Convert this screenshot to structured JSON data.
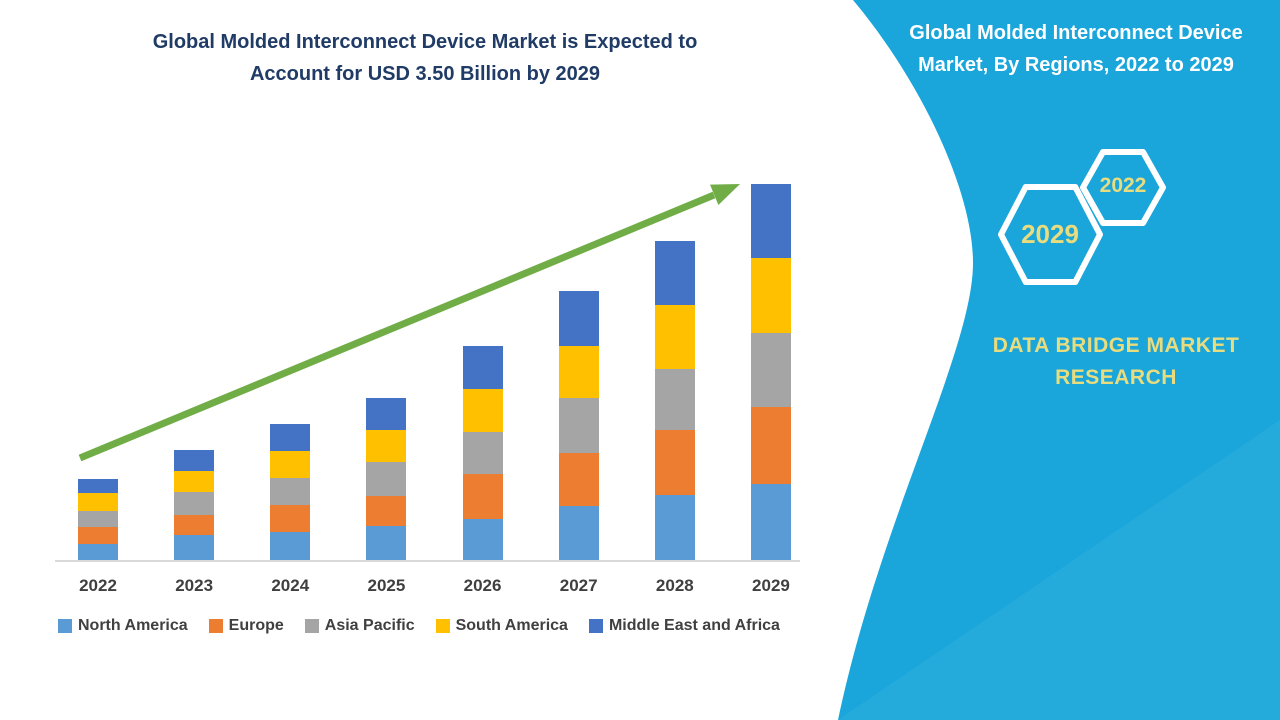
{
  "left_panel": {
    "title_line1": "Global Molded Interconnect Device Market is Expected to",
    "title_line2": "Account for USD 3.50 Billion by 2029",
    "title_color": "#1F3B66",
    "arrow_color": "#70AD47",
    "axis_line_color": "#D9D9D9",
    "axis_label_color": "#3F3F3F"
  },
  "chart_data": {
    "type": "bar",
    "stacked": true,
    "title": "Global Molded Interconnect Device Market is Expected to Account for USD 3.50 Billion by 2029",
    "unit": "USD Billion",
    "xlabel": "",
    "ylabel": "",
    "ylim": [
      0,
      3.6
    ],
    "grid": false,
    "legend_position": "bottom",
    "trend_arrow": true,
    "total_2029": "USD 3.50 Billion",
    "categories": [
      "2022",
      "2023",
      "2024",
      "2025",
      "2026",
      "2027",
      "2028",
      "2029"
    ],
    "series": [
      {
        "name": "North America",
        "color": "#5B9BD5",
        "values": [
          0.15,
          0.23,
          0.26,
          0.32,
          0.38,
          0.5,
          0.61,
          0.71
        ]
      },
      {
        "name": "Europe",
        "color": "#ED7D31",
        "values": [
          0.16,
          0.19,
          0.25,
          0.28,
          0.42,
          0.5,
          0.6,
          0.71
        ]
      },
      {
        "name": "Asia Pacific",
        "color": "#A5A5A5",
        "values": [
          0.15,
          0.21,
          0.25,
          0.31,
          0.39,
          0.51,
          0.57,
          0.69
        ]
      },
      {
        "name": "South America",
        "color": "#FFC000",
        "values": [
          0.16,
          0.2,
          0.25,
          0.3,
          0.4,
          0.48,
          0.6,
          0.7
        ]
      },
      {
        "name": "Middle East and Africa",
        "color": "#4472C4",
        "values": [
          0.13,
          0.19,
          0.26,
          0.3,
          0.4,
          0.51,
          0.59,
          0.69
        ]
      }
    ]
  },
  "right_panel": {
    "background_color": "#1AA6DB",
    "title_line1": "Global Molded Interconnect Device",
    "title_line2": "Market, By Regions, 2022 to 2029",
    "title_color": "#FFFFFF",
    "hexagons": [
      {
        "label": "2029",
        "size": "large"
      },
      {
        "label": "2022",
        "size": "small"
      }
    ],
    "hexagon_border_color": "#FFFFFF",
    "accent_text_color": "#E9DC7E",
    "brand_line1": "DATA BRIDGE MARKET",
    "brand_line2": "RESEARCH"
  }
}
